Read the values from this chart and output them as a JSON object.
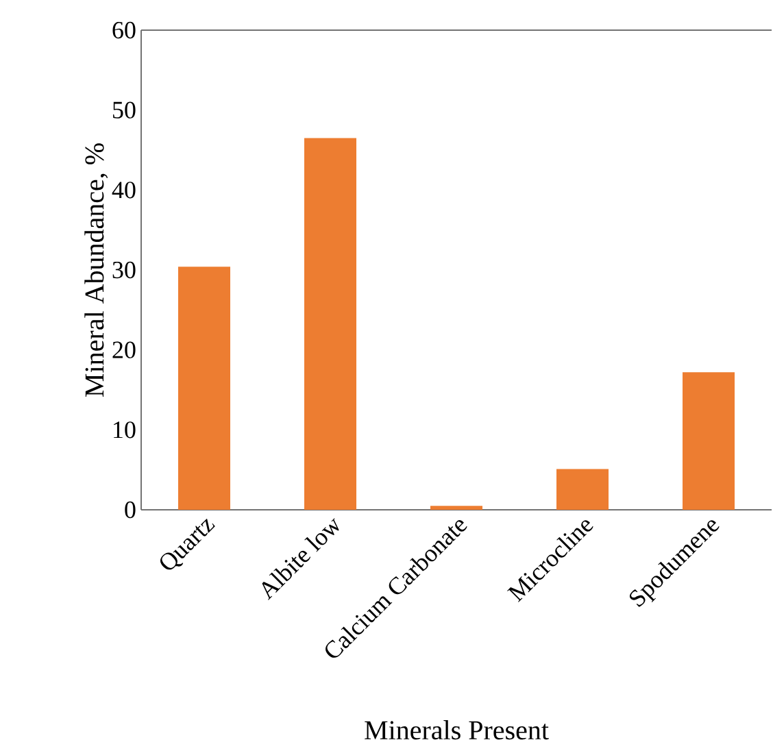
{
  "chart_data": {
    "type": "bar",
    "xlabel": "Minerals Present",
    "ylabel": "Mineral Abundance, %",
    "categories": [
      "Quartz",
      "Albite low",
      "Calcium Carbonate",
      "Microcline",
      "Spodumene"
    ],
    "values": [
      30.4,
      46.5,
      0.5,
      5.1,
      17.2
    ],
    "color": "#ed7d31",
    "ylim": [
      0,
      60
    ],
    "yticks": [
      0,
      10,
      20,
      30,
      40,
      50,
      60
    ],
    "grid": false
  }
}
